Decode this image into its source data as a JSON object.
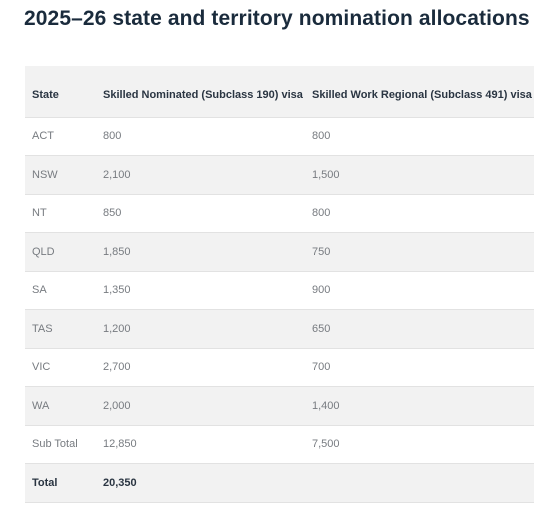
{
  "page": {
    "title": "2025–26 state and territory nomination allocations"
  },
  "table": {
    "headers": {
      "state": "State",
      "subclass190": "Skilled Nominated (Subclass 190) visa",
      "subclass491": "Skilled Work Regional (Subclass 491) visa"
    },
    "rows": [
      {
        "state": "ACT",
        "subclass190": "800",
        "subclass491": "800"
      },
      {
        "state": "NSW",
        "subclass190": "2,100",
        "subclass491": "1,500"
      },
      {
        "state": "NT",
        "subclass190": "850",
        "subclass491": "800"
      },
      {
        "state": "QLD",
        "subclass190": "1,850",
        "subclass491": "750"
      },
      {
        "state": "SA",
        "subclass190": "1,350",
        "subclass491": "900"
      },
      {
        "state": "TAS",
        "subclass190": "1,200",
        "subclass491": "650"
      },
      {
        "state": "VIC",
        "subclass190": "2,700",
        "subclass491": "700"
      },
      {
        "state": "WA",
        "subclass190": "2,000",
        "subclass491": "1,400"
      },
      {
        "state": "Sub Total",
        "subclass190": "12,850",
        "subclass491": "7,500"
      },
      {
        "state": "Total",
        "subclass190": "20,350",
        "subclass491": ""
      }
    ]
  },
  "colors": {
    "title": "#1a2b3c",
    "header_background": "#f2f2f2",
    "stripe_background": "#f2f2f2",
    "cell_text": "#777b80",
    "header_text": "#2a3542",
    "row_border": "#e2e2e2"
  }
}
